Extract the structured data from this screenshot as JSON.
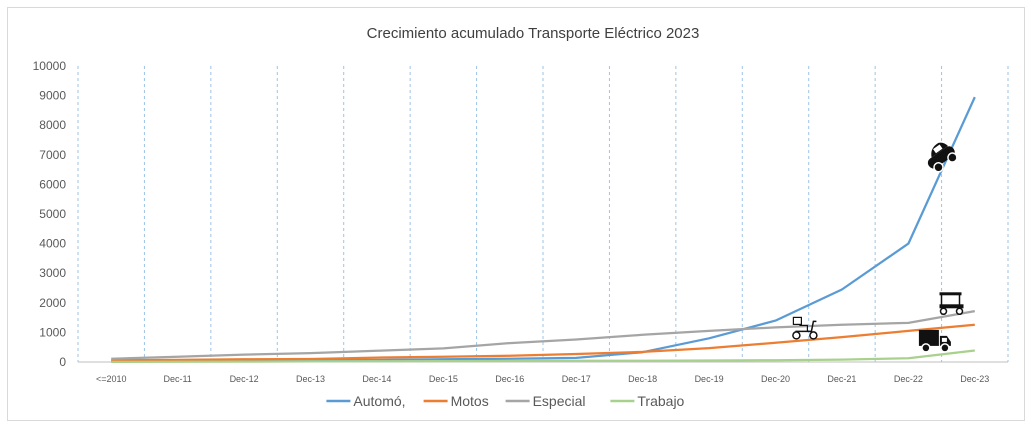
{
  "chart_data": {
    "type": "line",
    "title": "Crecimiento acumulado Transporte Eléctrico 2023",
    "categories": [
      "<=2010",
      "Dec-11",
      "Dec-12",
      "Dec-13",
      "Dec-14",
      "Dec-15",
      "Dec-16",
      "Dec-17",
      "Dec-18",
      "Dec-19",
      "Dec-20",
      "Dec-21",
      "Dec-22",
      "Dec-23"
    ],
    "ylim": [
      0,
      10000
    ],
    "yticks": [
      "0",
      "1000",
      "2000",
      "3000",
      "4000",
      "5000",
      "6000",
      "7000",
      "8000",
      "9000",
      "10000"
    ],
    "grid": "vertical dashed",
    "legend_position": "bottom",
    "series": [
      {
        "name": "Automó,",
        "color": "#5b9bd5",
        "values": [
          30,
          40,
          50,
          60,
          70,
          90,
          110,
          140,
          330,
          800,
          1400,
          2450,
          4000,
          8950
        ]
      },
      {
        "name": "Motos",
        "color": "#ed7d31",
        "values": [
          60,
          70,
          90,
          100,
          150,
          180,
          210,
          270,
          340,
          470,
          650,
          840,
          1050,
          1260
        ]
      },
      {
        "name": "Especial",
        "color": "#a5a5a5",
        "values": [
          110,
          180,
          250,
          300,
          380,
          460,
          640,
          760,
          920,
          1050,
          1170,
          1260,
          1320,
          1720
        ]
      },
      {
        "name": "Trabajo",
        "color": "#a9d18e",
        "values": [
          5,
          10,
          15,
          20,
          25,
          30,
          35,
          40,
          45,
          50,
          60,
          80,
          130,
          390
        ]
      }
    ],
    "icons": [
      {
        "name": "car-icon",
        "category_index": 12.5,
        "value": 6900
      },
      {
        "name": "golf-cart-icon",
        "category_index": 12.65,
        "value": 1950
      },
      {
        "name": "scooter-icon",
        "category_index": 10.45,
        "value": 1100
      },
      {
        "name": "truck-icon",
        "category_index": 12.4,
        "value": 680
      }
    ]
  }
}
